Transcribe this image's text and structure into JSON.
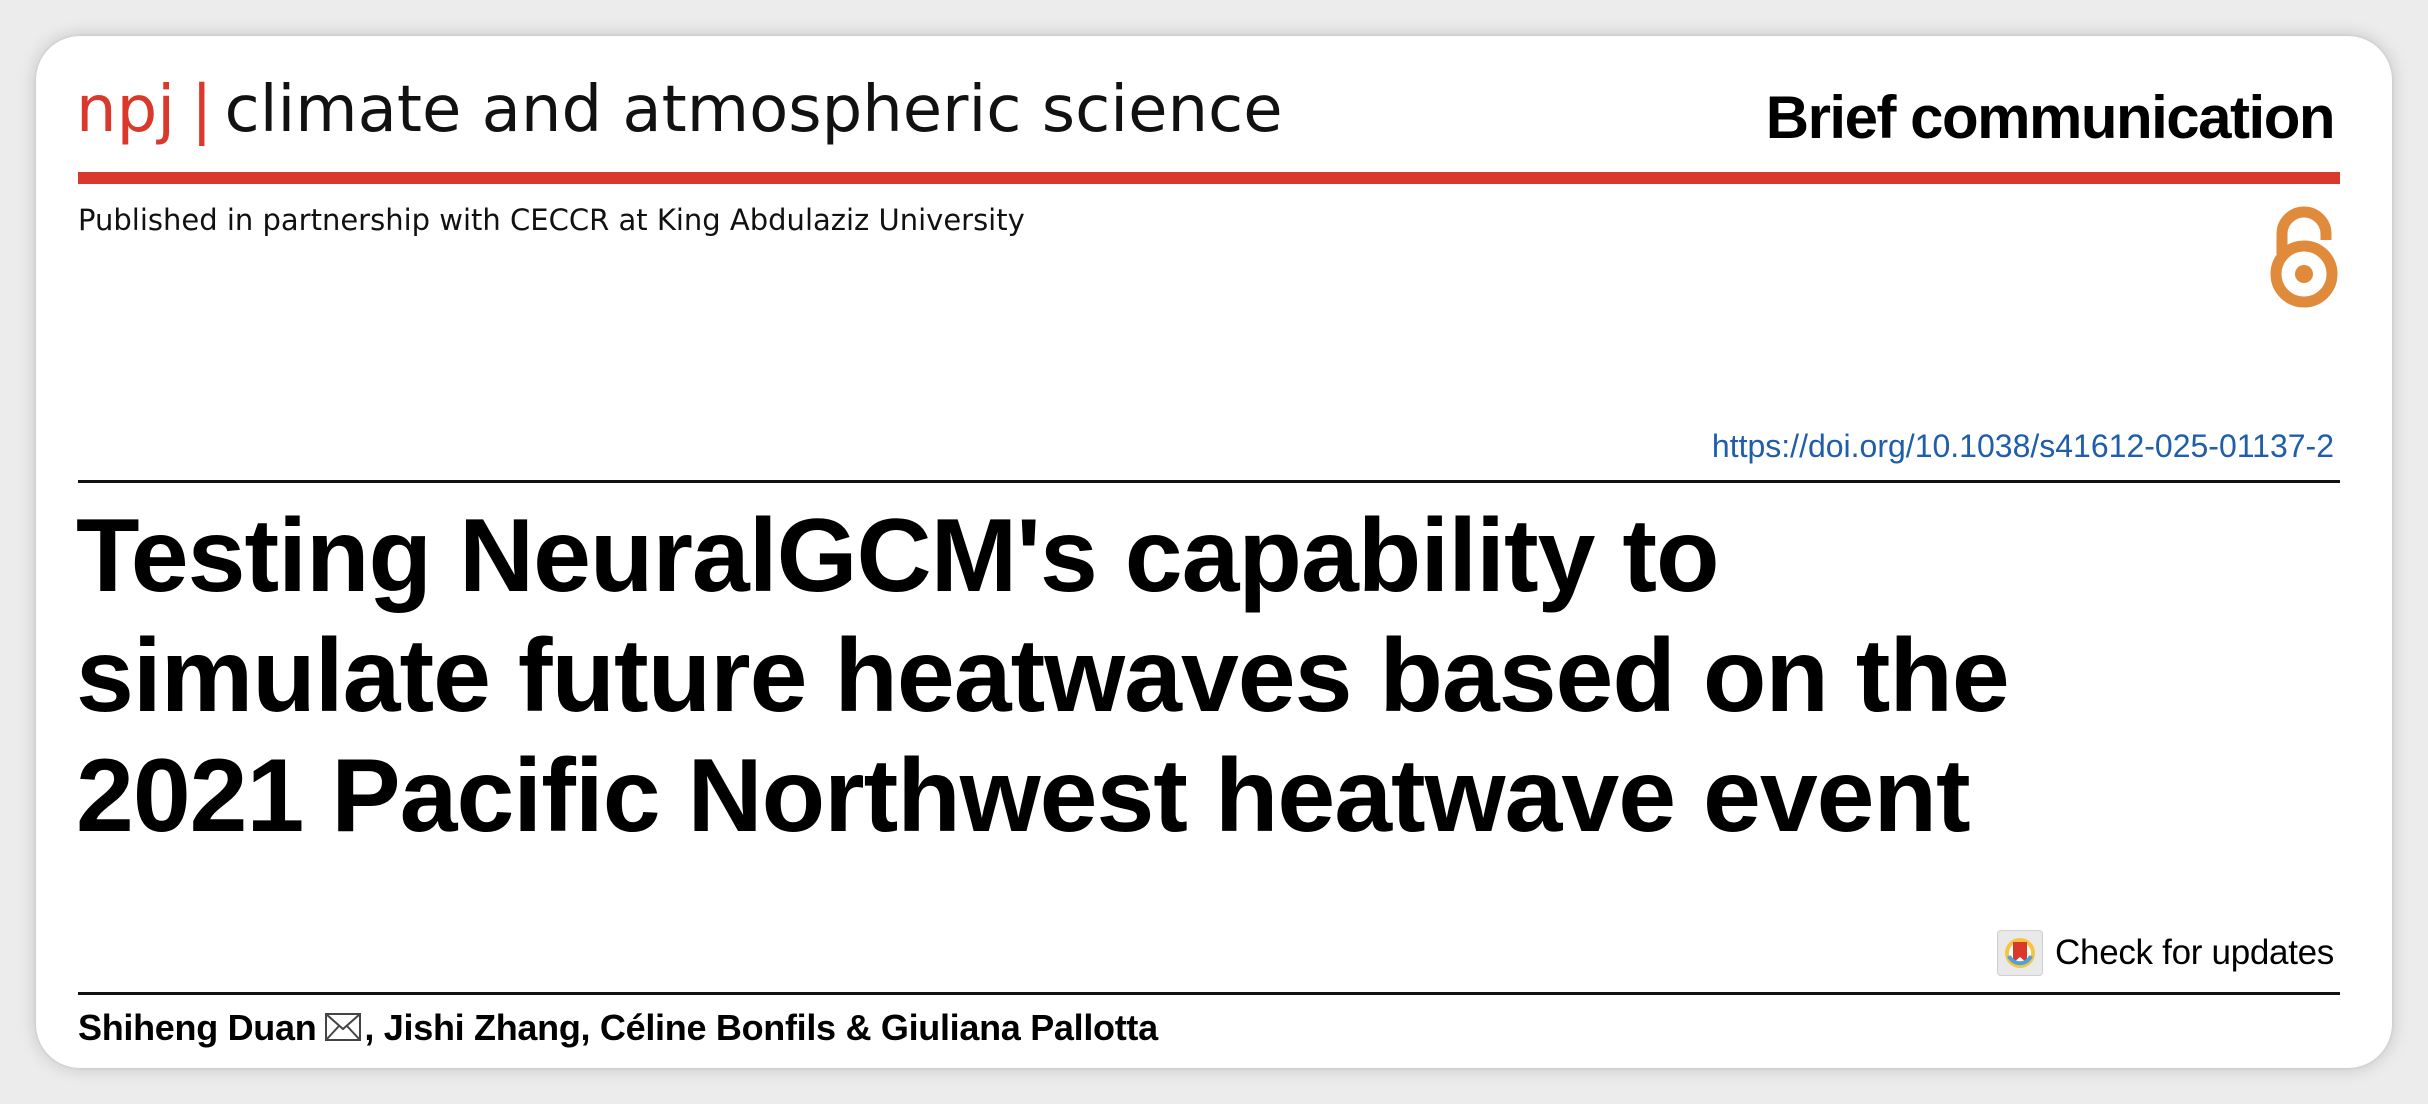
{
  "journal": {
    "brand": "npj",
    "separator": "|",
    "name": "climate and atmospheric science",
    "article_type": "Brief communication",
    "partnership": "Published in partnership with CECCR at King Abdulaziz University",
    "brand_color": "#d9382b"
  },
  "open_access": {
    "icon": "open-access-lock-icon",
    "color": "#e08a3c"
  },
  "article": {
    "doi": "https://doi.org/10.1038/s41612-025-01137-2",
    "title_lines": [
      "Testing NeuralGCM's capability to",
      "simulate future heatwaves based on the",
      "2021 Pacific Northwest heatwave event"
    ],
    "check_updates_label": "Check for updates",
    "check_updates_icon": "crossmark-icon"
  },
  "authors": {
    "first": "Shiheng Duan",
    "corresponding_icon": "envelope-icon",
    "rest": ", Jishi Zhang, Céline Bonfils & Giuliana Pallotta"
  },
  "colors": {
    "doi_link": "#1f5ea8",
    "rule": "#111111"
  }
}
